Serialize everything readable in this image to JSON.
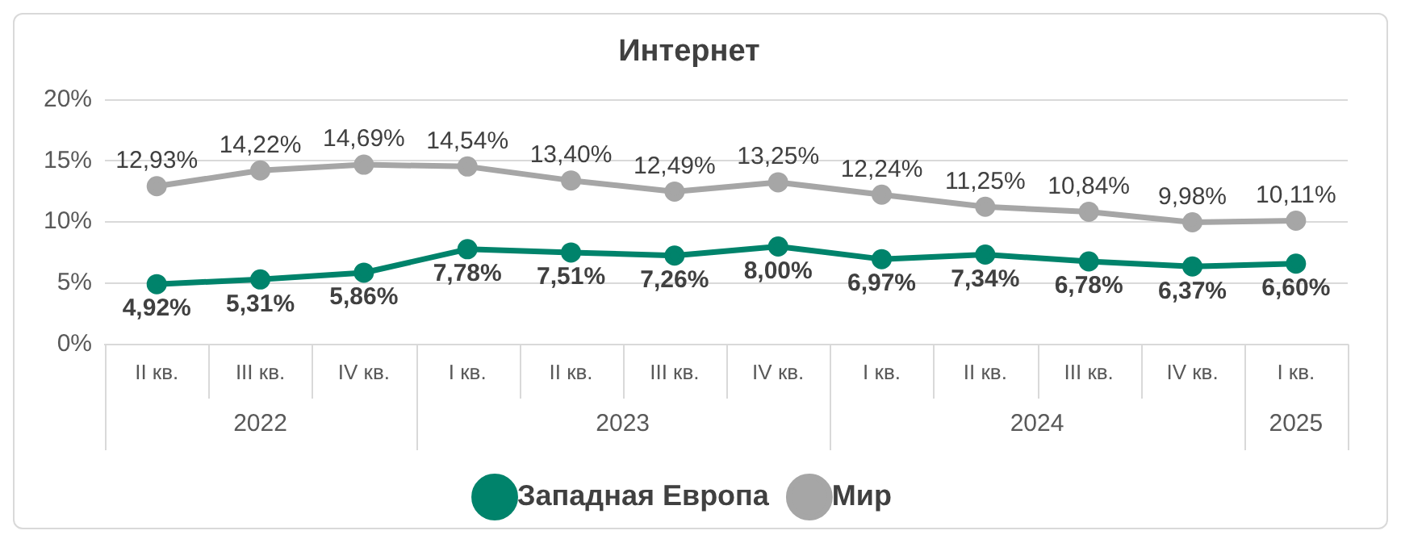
{
  "chart_data": {
    "type": "line",
    "title": "Интернет",
    "categories": [
      "II кв.",
      "III кв.",
      "IV кв.",
      "I кв.",
      "II кв.",
      "III кв.",
      "IV кв.",
      "I кв.",
      "II кв.",
      "III кв.",
      "IV кв.",
      "I кв."
    ],
    "series": [
      {
        "name": "Западная Европа",
        "color": "#00836b",
        "values": [
          4.92,
          5.31,
          5.86,
          7.78,
          7.51,
          7.26,
          8.0,
          6.97,
          7.34,
          6.78,
          6.37,
          6.6
        ],
        "value_labels": [
          "4,92%",
          "5,31%",
          "5,86%",
          "7,78%",
          "7,51%",
          "7,26%",
          "8,00%",
          "6,97%",
          "7,34%",
          "6,78%",
          "6,37%",
          "6,60%"
        ]
      },
      {
        "name": "Мир",
        "color": "#a6a6a6",
        "values": [
          12.93,
          14.22,
          14.69,
          14.54,
          13.4,
          12.49,
          13.25,
          12.24,
          11.25,
          10.84,
          9.98,
          10.11
        ],
        "value_labels": [
          "12,93%",
          "14,22%",
          "14,69%",
          "14,54%",
          "13,40%",
          "12,49%",
          "13,25%",
          "12,24%",
          "11,25%",
          "10,84%",
          "9,98%",
          "10,11%"
        ]
      }
    ],
    "annotations": [
      "2022",
      "2023",
      "2024",
      "2025"
    ],
    "ylim": [
      0,
      20
    ],
    "yticks": [
      {
        "value": 0,
        "label": "0%"
      },
      {
        "value": 5,
        "label": "5%"
      },
      {
        "value": 10,
        "label": "10%"
      },
      {
        "value": 15,
        "label": "15%"
      },
      {
        "value": 20,
        "label": "20%"
      }
    ],
    "grid": "y",
    "legend": "bottom",
    "marker": "circle",
    "line_style": "solid"
  }
}
